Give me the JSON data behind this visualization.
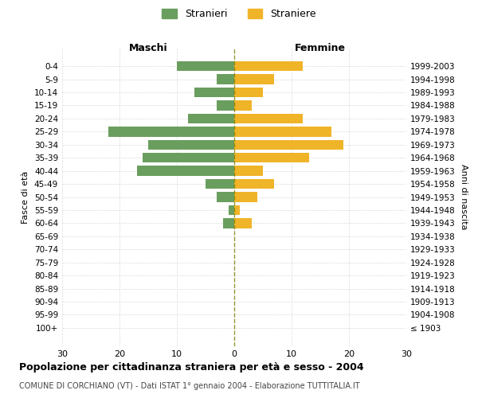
{
  "age_groups": [
    "100+",
    "95-99",
    "90-94",
    "85-89",
    "80-84",
    "75-79",
    "70-74",
    "65-69",
    "60-64",
    "55-59",
    "50-54",
    "45-49",
    "40-44",
    "35-39",
    "30-34",
    "25-29",
    "20-24",
    "15-19",
    "10-14",
    "5-9",
    "0-4"
  ],
  "birth_years": [
    "≤ 1903",
    "1904-1908",
    "1909-1913",
    "1914-1918",
    "1919-1923",
    "1924-1928",
    "1929-1933",
    "1934-1938",
    "1939-1943",
    "1944-1948",
    "1949-1953",
    "1954-1958",
    "1959-1963",
    "1964-1968",
    "1969-1973",
    "1974-1978",
    "1979-1983",
    "1984-1988",
    "1989-1993",
    "1994-1998",
    "1999-2003"
  ],
  "maschi": [
    0,
    0,
    0,
    0,
    0,
    0,
    0,
    0,
    2,
    1,
    3,
    5,
    17,
    16,
    15,
    22,
    8,
    3,
    7,
    3,
    10
  ],
  "femmine": [
    0,
    0,
    0,
    0,
    0,
    0,
    0,
    0,
    3,
    1,
    4,
    7,
    5,
    13,
    19,
    17,
    12,
    3,
    5,
    7,
    12
  ],
  "color_maschi": "#6a9e5e",
  "color_femmine": "#f0b429",
  "title": "Popolazione per cittadinanza straniera per età e sesso - 2004",
  "subtitle": "COMUNE DI CORCHIANO (VT) - Dati ISTAT 1° gennaio 2004 - Elaborazione TUTTITALIA.IT",
  "xlabel_left": "Maschi",
  "xlabel_right": "Femmine",
  "ylabel_left": "Fasce di età",
  "ylabel_right": "Anni di nascita",
  "legend_maschi": "Stranieri",
  "legend_femmine": "Straniere",
  "xlim": 30,
  "background_color": "#ffffff",
  "grid_color": "#cccccc"
}
